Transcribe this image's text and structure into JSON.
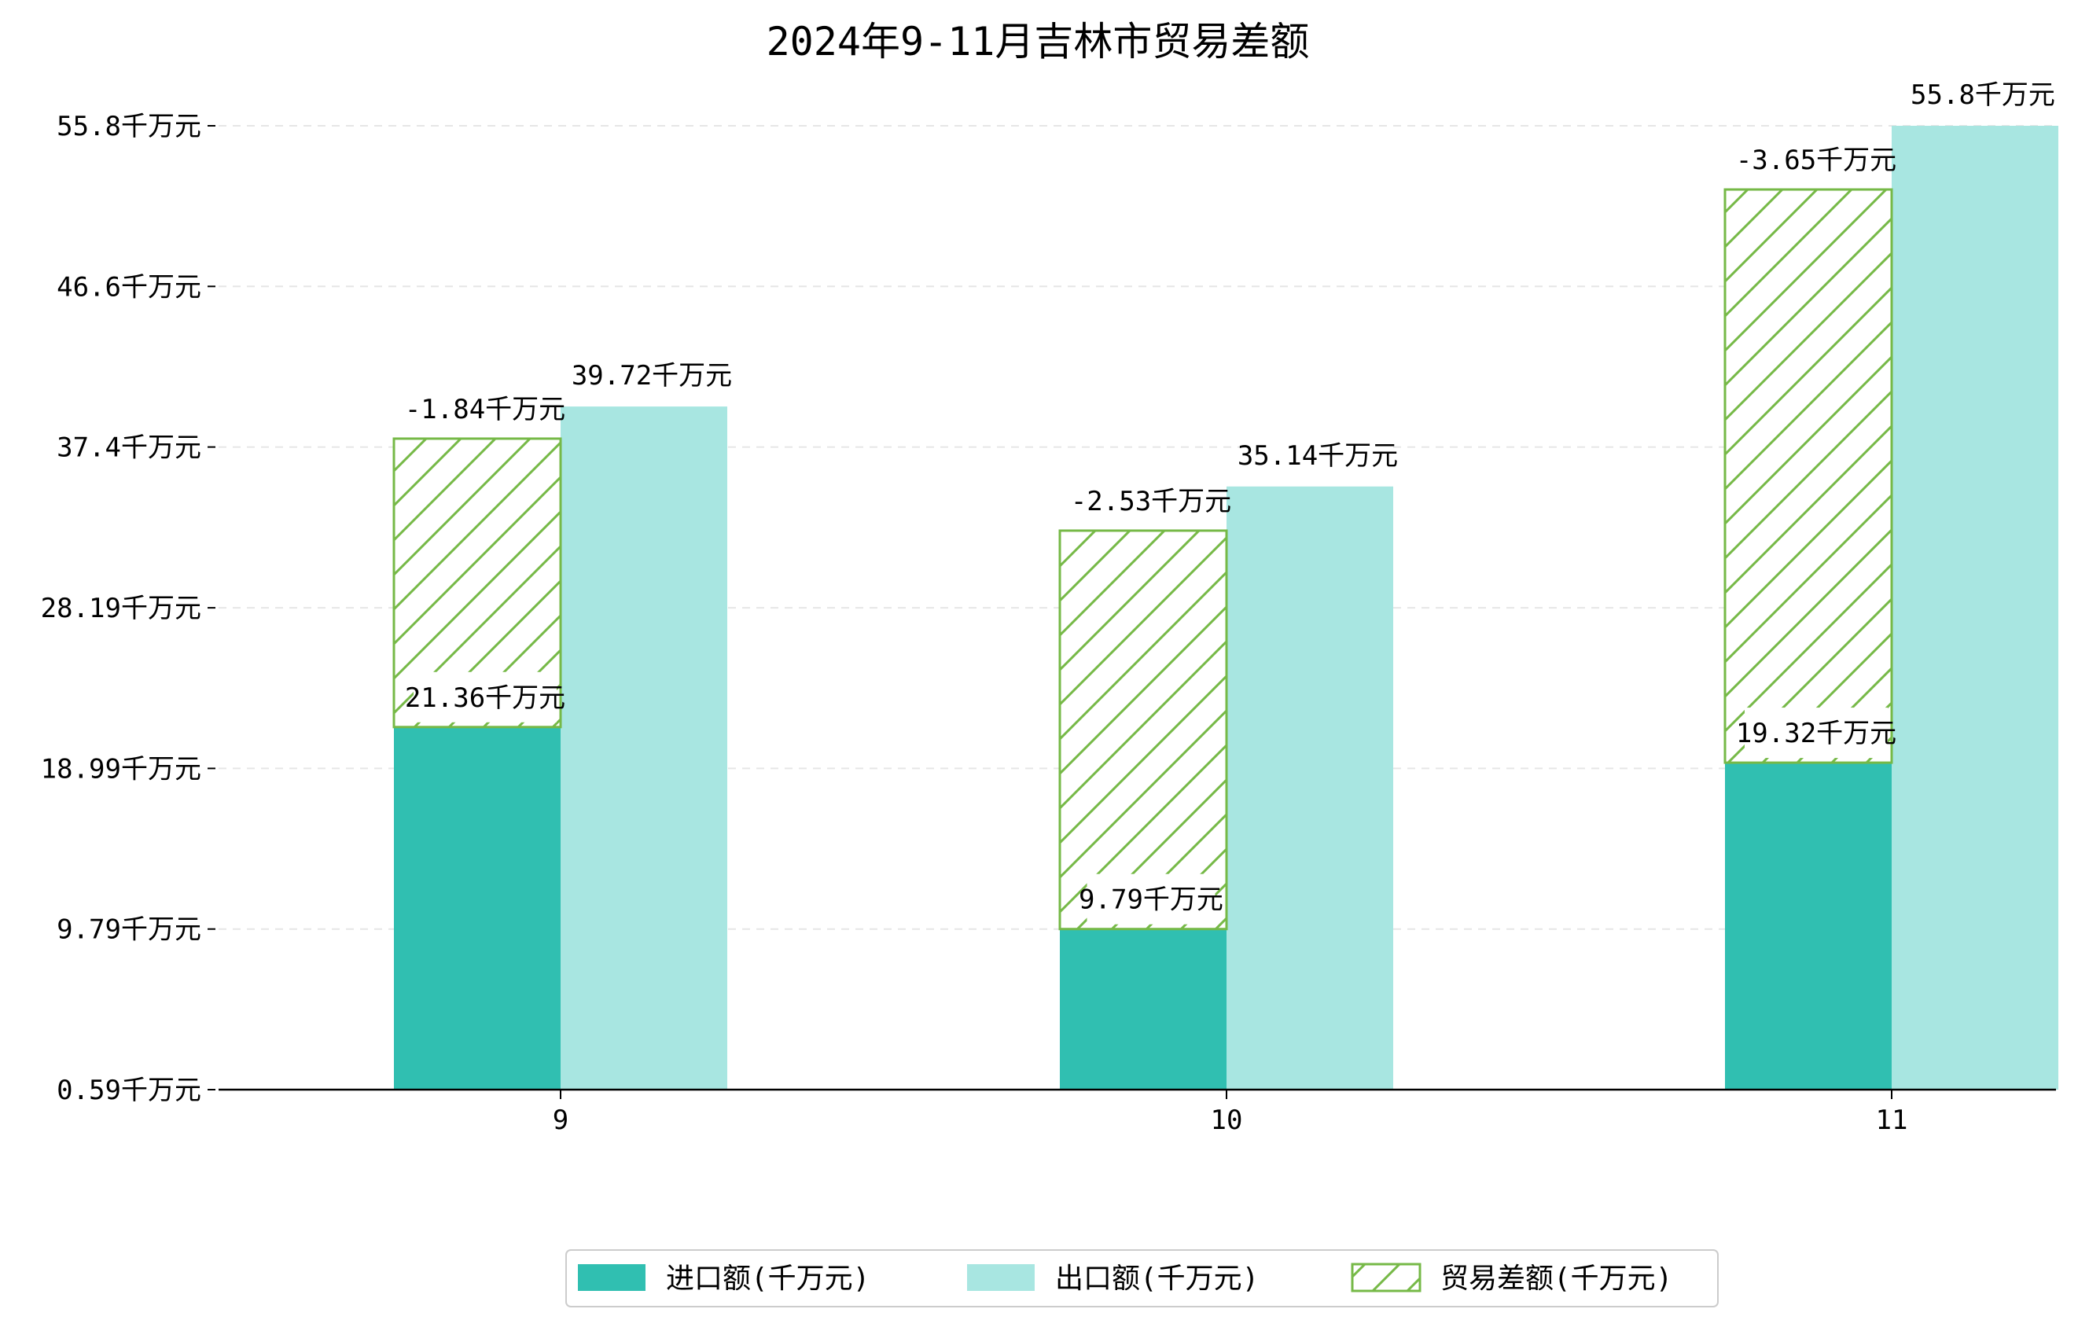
{
  "chart_data": {
    "type": "bar",
    "title": "2024年9-11月吉林市贸易差额",
    "categories": [
      "9",
      "10",
      "11"
    ],
    "series": [
      {
        "name": "进口额(千万元)",
        "values": [
          21.36,
          9.79,
          19.32
        ],
        "color": "#30BFB1",
        "labels": [
          "21.36千万元",
          "9.79千万元",
          "19.32千万元"
        ]
      },
      {
        "name": "出口额(千万元)",
        "values": [
          39.72,
          35.14,
          55.8
        ],
        "color": "#A8E6E1",
        "labels": [
          "39.72千万元",
          "35.14千万元",
          "55.8千万元"
        ]
      },
      {
        "name": "贸易差额(千万元)",
        "values": [
          -1.84,
          -2.53,
          -3.65
        ],
        "color": "#76B947",
        "hatch": true,
        "labels": [
          "-1.84千万元",
          "-2.53千万元",
          "-3.65千万元"
        ]
      }
    ],
    "difference_bar_range": [
      [
        21.36,
        37.88
      ],
      [
        9.79,
        32.61
      ],
      [
        19.32,
        52.15
      ]
    ],
    "y_ticks": [
      "0.59千万元",
      "9.79千万元",
      "18.99千万元",
      "28.19千万元",
      "37.4千万元",
      "46.6千万元",
      "55.8千万元"
    ],
    "y_tick_values": [
      0.59,
      9.79,
      18.99,
      28.19,
      37.4,
      46.6,
      55.8
    ],
    "ylim": [
      0.59,
      57.5
    ],
    "grid": "horizontal dashed",
    "legend_position": "bottom-center"
  }
}
